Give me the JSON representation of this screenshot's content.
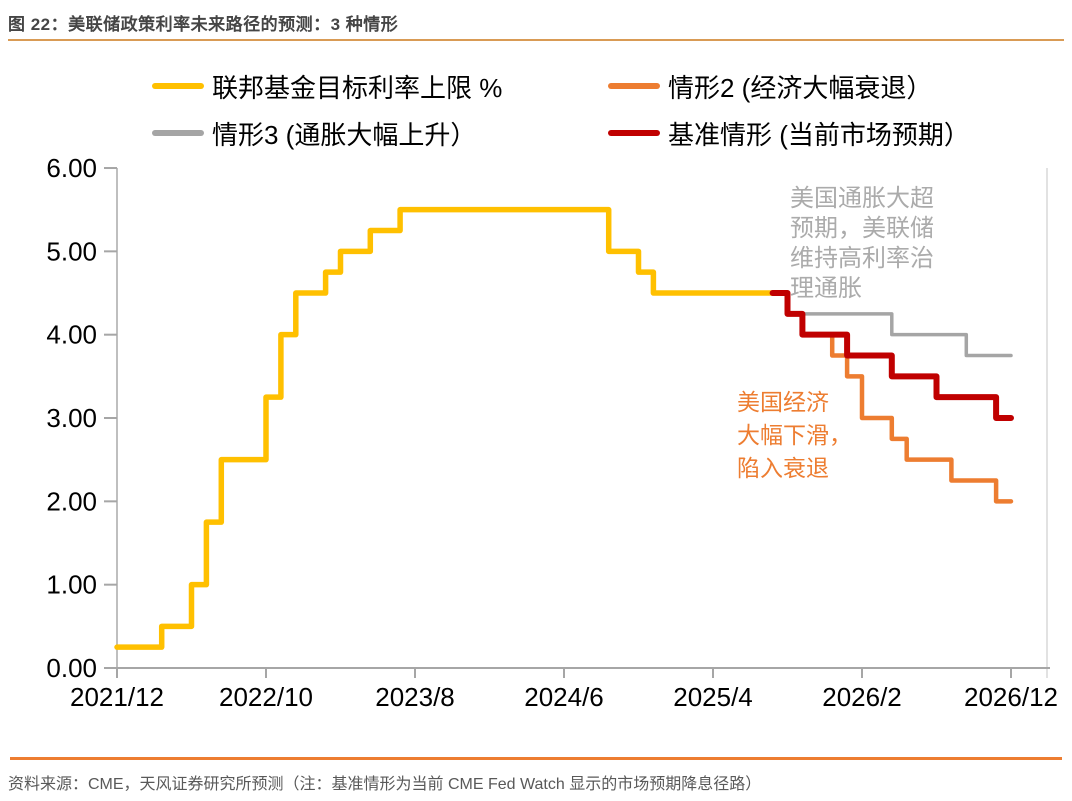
{
  "header": {
    "title": "图 22：美联储政策利率未来路径的预测：3 种情形"
  },
  "legend": {
    "items": [
      {
        "id": "upper-bound",
        "label": "联邦基金目标利率上限 %",
        "color": "#FFC000"
      },
      {
        "id": "scenario2-recession",
        "label": "情形2 (经济大幅衰退）",
        "color": "#ED7D31"
      },
      {
        "id": "scenario3-inflation",
        "label": "情形3 (通胀大幅上升）",
        "color": "#A5A5A5"
      },
      {
        "id": "baseline",
        "label": "基准情形 (当前市场预期）",
        "color": "#C00000"
      }
    ]
  },
  "annotations": [
    {
      "id": "inflation",
      "text": "美国通胀大超\n预期，美联储\n维持高利率治\n理通胀",
      "color": "#ABABAB"
    },
    {
      "id": "recession",
      "text": "美国经济\n大幅下滑，\n陷入衰退",
      "color": "#ED7D31"
    }
  ],
  "footer": {
    "source": "资料来源：CME，天风证券研究所预测（注：基准情形为当前 CME Fed Watch 显示的市场预期降息径路）"
  },
  "chart_data": {
    "type": "line",
    "step": true,
    "title": "图 22：美联储政策利率未来路径的预测：3 种情形",
    "xlabel": "",
    "ylabel": "",
    "ylim": [
      0,
      6
    ],
    "grid": false,
    "legend_position": "top",
    "y_ticks": [
      "0.00",
      "1.00",
      "2.00",
      "3.00",
      "4.00",
      "5.00",
      "6.00"
    ],
    "x_ticks": [
      "2021/12",
      "2022/10",
      "2023/8",
      "2024/6",
      "2025/4",
      "2026/2",
      "2026/12"
    ],
    "series": [
      {
        "id": "upper-bound",
        "name": "联邦基金目标利率上限 %",
        "color": "#FFC000",
        "width": 5.5,
        "points": [
          [
            "2021/12",
            0.25
          ],
          [
            "2022/3",
            0.5
          ],
          [
            "2022/5",
            1.0
          ],
          [
            "2022/6",
            1.75
          ],
          [
            "2022/7",
            2.5
          ],
          [
            "2022/10",
            3.25
          ],
          [
            "2022/11",
            4.0
          ],
          [
            "2022/12",
            4.5
          ],
          [
            "2023/2",
            4.75
          ],
          [
            "2023/3",
            5.0
          ],
          [
            "2023/5",
            5.25
          ],
          [
            "2023/7",
            5.5
          ],
          [
            "2024/9",
            5.0
          ],
          [
            "2024/11",
            4.75
          ],
          [
            "2024/12",
            4.5
          ]
        ],
        "end": "2025/8"
      },
      {
        "id": "scenario3-inflation",
        "name": "情形3 (通胀大幅上升）",
        "color": "#A5A5A5",
        "width": 3.5,
        "points": [
          [
            "2025/10",
            4.25
          ],
          [
            "2026/4",
            4.0
          ],
          [
            "2026/9",
            3.75
          ]
        ],
        "end": "2026/12"
      },
      {
        "id": "scenario2-recession",
        "name": "情形2 (经济大幅衰退）",
        "color": "#ED7D31",
        "width": 4.5,
        "points": [
          [
            "2025/11",
            4.0
          ],
          [
            "2025/12",
            3.75
          ],
          [
            "2026/1",
            3.5
          ],
          [
            "2026/2",
            3.0
          ],
          [
            "2026/4",
            2.75
          ],
          [
            "2026/5",
            2.5
          ],
          [
            "2026/8",
            2.25
          ],
          [
            "2026/11",
            2.0
          ]
        ],
        "end": "2026/12"
      },
      {
        "id": "baseline",
        "name": "基准情形 (当前市场预期）",
        "color": "#C00000",
        "width": 6,
        "points": [
          [
            "2025/8",
            4.5
          ],
          [
            "2025/9",
            4.25
          ],
          [
            "2025/10",
            4.0
          ],
          [
            "2026/1",
            3.75
          ],
          [
            "2026/4",
            3.5
          ],
          [
            "2026/7",
            3.25
          ],
          [
            "2026/11",
            3.0
          ]
        ],
        "end": "2026/12"
      }
    ]
  }
}
